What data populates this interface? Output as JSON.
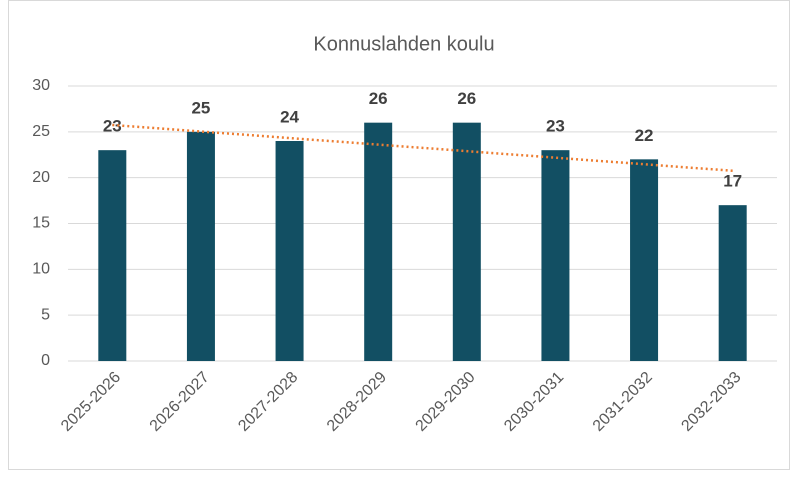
{
  "chart_data": {
    "type": "bar",
    "title": "Konnuslahden koulu",
    "categories": [
      "2025-2026",
      "2026-2027",
      "2027-2028",
      "2028-2029",
      "2029-2030",
      "2030-2031",
      "2031-2032",
      "2032-2033"
    ],
    "values": [
      23,
      25,
      24,
      26,
      26,
      23,
      22,
      17
    ],
    "color": "#124f63",
    "ylim": [
      0,
      30
    ],
    "yticks": [
      0,
      5,
      10,
      15,
      20,
      25,
      30
    ],
    "grid": true,
    "data_labels": true,
    "trendline": {
      "type": "linear",
      "color": "#ed7d31"
    }
  }
}
